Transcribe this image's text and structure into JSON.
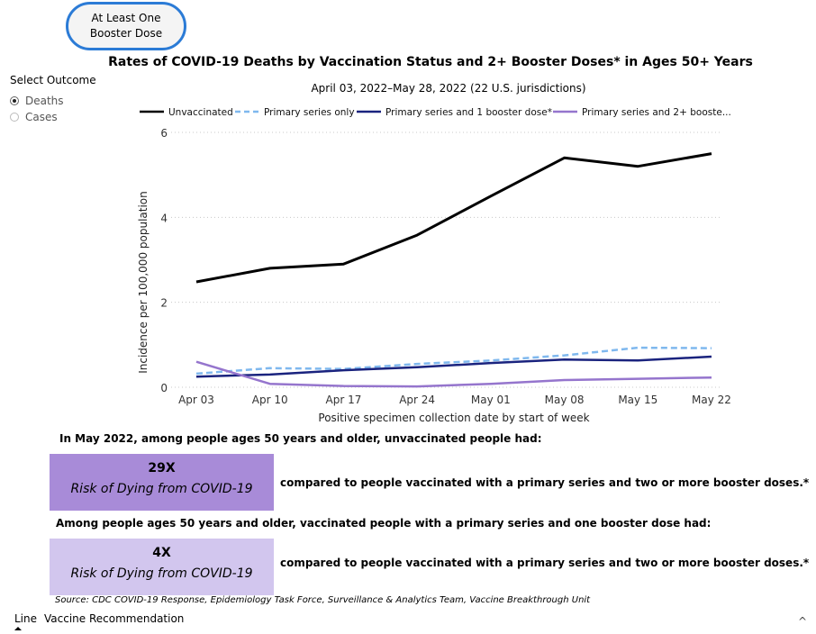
{
  "toggle_button": {
    "label_line1": "At Least One",
    "label_line2": "Booster Dose"
  },
  "select_outcome": {
    "label": "Select Outcome",
    "options": [
      {
        "label": "Deaths",
        "selected": true
      },
      {
        "label": "Cases",
        "selected": false
      }
    ]
  },
  "chart_data": {
    "type": "line",
    "title": "Rates of COVID-19 Deaths by Vaccination Status and 2+ Booster Doses* in Ages 50+ Years",
    "subtitle": "April 03, 2022–May 28, 2022 (22 U.S. jurisdictions)",
    "xlabel": "Positive specimen collection date by start of week",
    "ylabel": "Incidence per 100,000 population",
    "categories": [
      "Apr 03",
      "Apr 10",
      "Apr 17",
      "Apr 24",
      "May 01",
      "May 08",
      "May 15",
      "May 22"
    ],
    "ylim": [
      0,
      6
    ],
    "yticks": [
      0,
      2,
      4,
      6
    ],
    "grid": true,
    "legend_position": "top",
    "series": [
      {
        "name": "Unvaccinated",
        "color": "#000000",
        "dash": "solid",
        "values": [
          2.48,
          2.8,
          2.9,
          3.58,
          4.5,
          5.4,
          5.2,
          5.5
        ]
      },
      {
        "name": "Primary series only",
        "color": "#7fb8ee",
        "dash": "dashed",
        "values": [
          0.32,
          0.45,
          0.43,
          0.55,
          0.63,
          0.75,
          0.93,
          0.92
        ]
      },
      {
        "name": "Primary series and 1 booster dose*",
        "color": "#1a237e",
        "dash": "solid",
        "values": [
          0.25,
          0.3,
          0.4,
          0.47,
          0.57,
          0.65,
          0.63,
          0.72
        ]
      },
      {
        "name": "Primary series and 2+ booste...",
        "color": "#9575cd",
        "dash": "solid",
        "values": [
          0.6,
          0.08,
          0.03,
          0.02,
          0.08,
          0.17,
          0.2,
          0.23
        ]
      }
    ]
  },
  "summary": {
    "statement1": "In May 2022, among people ages 50 years and older, unvaccinated people had:",
    "box1": {
      "value": "29X",
      "label": "Risk of Dying from COVID-19",
      "color": "#a88bd8"
    },
    "compare1": "compared to people vaccinated with a primary series and two or more booster doses.*",
    "statement2": "Among people ages 50 years and older, vaccinated people with a primary series and one booster dose had:",
    "box2": {
      "value": "4X",
      "label": "Risk of Dying from COVID-19",
      "color": "#d2c6ee"
    },
    "compare2": "compared to people vaccinated with a primary series and two or more booster doses.*"
  },
  "source": "Source: CDC COVID-19 Response, Epidemiology Task Force, Surveillance & Analytics Team, Vaccine Breakthrough Unit",
  "tabs": [
    {
      "label": "Line",
      "active": true
    },
    {
      "label": "Vaccine Recommendation",
      "active": false
    }
  ],
  "scroll_icon": "chevron-up-icon"
}
